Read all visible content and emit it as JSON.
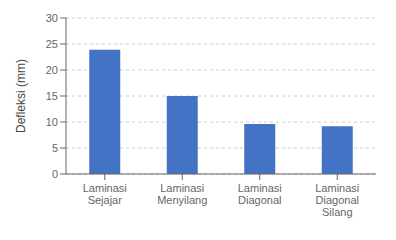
{
  "chart_data": {
    "type": "bar",
    "categories": [
      "Laminasi\nSejajar",
      "Laminasi\nMenyilang",
      "Laminasi\nDiagonal",
      "Laminasi\nDiagonal\nSilang"
    ],
    "values": [
      23.9,
      15.0,
      9.6,
      9.2
    ],
    "color": "#4472c4",
    "ylabel": "Defleksi (mm)",
    "ylim": [
      0,
      30
    ],
    "yticks": [
      0,
      5,
      10,
      15,
      20,
      25,
      30
    ],
    "grid": true
  }
}
